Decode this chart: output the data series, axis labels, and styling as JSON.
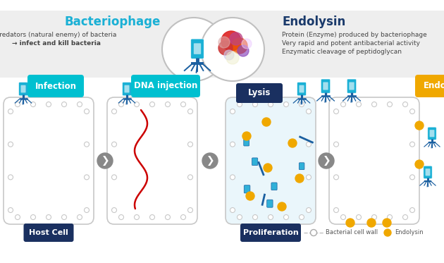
{
  "bg_color": "#ffffff",
  "top_panel_bg": "#eeeeee",
  "title1": "Bacteriophage",
  "title1_color": "#1ab0d5",
  "title2": "Endolysin",
  "title2_color": "#1a3a6b",
  "text1_line1": "Predators (natural enemy) of bacteria",
  "text1_line2": "→ infect and kill bacteria",
  "text2_line1": "Protein (Enzyme) produced by bacteriophage",
  "text2_line2": "Very rapid and potent antibacterial activity",
  "text2_line3": "Enzymatic cleavage of peptidoglycan",
  "phage_blue": "#1ab0d5",
  "phage_dark": "#1a5fa0",
  "cell_wall_color": "#c8c8c8",
  "dna_color": "#cc0000",
  "endolysin_dot_color": "#f0a800",
  "lysis_fill": "#eaf6fb",
  "label_infection": "Infection",
  "label_dna": "DNA injection",
  "label_lysis": "Lysis",
  "label_endolysin": "Endolysin",
  "label_host": "Host Cell",
  "label_prolif": "Proliferation",
  "infection_label_color": "#00c0d0",
  "dna_label_color": "#00c0d0",
  "lysis_label_color": "#1a3060",
  "endolysin_label_color": "#f0a800",
  "host_label_color": "#1a3060",
  "prolif_label_color": "#1a3060",
  "legend_text1": "Bacterial cell wall",
  "legend_text2": "Endolysin",
  "arrow_gray": "#909090"
}
